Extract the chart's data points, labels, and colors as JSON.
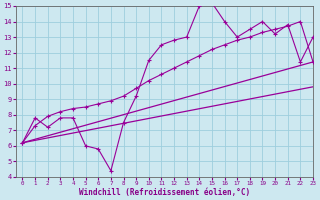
{
  "xlabel": "Windchill (Refroidissement éolien,°C)",
  "x_values": [
    0,
    1,
    2,
    3,
    4,
    5,
    6,
    7,
    8,
    9,
    10,
    11,
    12,
    13,
    14,
    15,
    16,
    17,
    18,
    19,
    20,
    21,
    22,
    23
  ],
  "y_main": [
    6.2,
    7.8,
    7.2,
    7.8,
    7.8,
    6.0,
    5.8,
    4.4,
    7.5,
    9.2,
    11.5,
    12.5,
    12.8,
    13.0,
    15.0,
    15.2,
    14.0,
    13.0,
    13.5,
    14.0,
    13.2,
    13.8,
    11.4,
    13.0
  ],
  "y_upper": [
    6.2,
    7.3,
    7.9,
    8.2,
    8.4,
    8.5,
    8.7,
    8.9,
    9.2,
    9.7,
    10.2,
    10.6,
    11.0,
    11.4,
    11.8,
    12.2,
    12.5,
    12.8,
    13.0,
    13.3,
    13.5,
    13.7,
    14.0,
    11.4
  ],
  "y_lower": [
    6.2,
    6.5,
    6.7,
    6.9,
    7.0,
    7.1,
    7.3,
    7.4,
    7.6,
    7.9,
    8.2,
    8.5,
    8.8,
    9.1,
    9.4,
    9.7,
    9.9,
    10.2,
    10.4,
    10.6,
    10.8,
    11.0,
    11.2,
    11.4
  ],
  "line_color": "#990099",
  "bg_color": "#cde8f0",
  "grid_color": "#9ecedd",
  "text_color": "#880088",
  "ylim": [
    4,
    15
  ],
  "xlim": [
    -0.5,
    23
  ],
  "yticks": [
    4,
    5,
    6,
    7,
    8,
    9,
    10,
    11,
    12,
    13,
    14,
    15
  ],
  "xticks": [
    0,
    1,
    2,
    3,
    4,
    5,
    6,
    7,
    8,
    9,
    10,
    11,
    12,
    13,
    14,
    15,
    16,
    17,
    18,
    19,
    20,
    21,
    22,
    23
  ]
}
